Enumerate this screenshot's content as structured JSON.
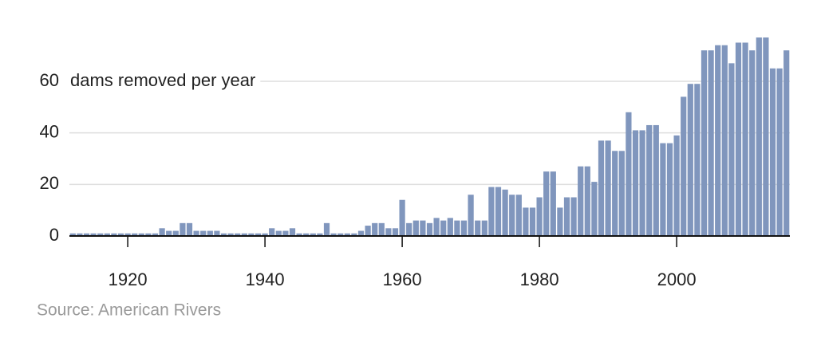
{
  "chart_data": {
    "type": "bar",
    "ylabel": "dams removed per year",
    "source": "Source: American Rivers",
    "x": [
      1912,
      1913,
      1914,
      1915,
      1916,
      1917,
      1918,
      1919,
      1920,
      1921,
      1922,
      1923,
      1924,
      1925,
      1926,
      1927,
      1928,
      1929,
      1930,
      1931,
      1932,
      1933,
      1934,
      1935,
      1936,
      1937,
      1938,
      1939,
      1940,
      1941,
      1942,
      1943,
      1944,
      1945,
      1946,
      1947,
      1948,
      1949,
      1950,
      1951,
      1952,
      1953,
      1954,
      1955,
      1956,
      1957,
      1958,
      1959,
      1960,
      1961,
      1962,
      1963,
      1964,
      1965,
      1966,
      1967,
      1968,
      1969,
      1970,
      1971,
      1972,
      1973,
      1974,
      1975,
      1976,
      1977,
      1978,
      1979,
      1980,
      1981,
      1982,
      1983,
      1984,
      1985,
      1986,
      1987,
      1988,
      1989,
      1990,
      1991,
      1992,
      1993,
      1994,
      1995,
      1996,
      1997,
      1998,
      1999,
      2000,
      2001,
      2002,
      2003,
      2004,
      2005,
      2006,
      2007,
      2008,
      2009,
      2010,
      2011,
      2012,
      2013,
      2014,
      2015,
      2016
    ],
    "values": [
      1,
      1,
      1,
      1,
      1,
      1,
      1,
      1,
      1,
      1,
      1,
      1,
      1,
      3,
      2,
      2,
      5,
      5,
      2,
      2,
      2,
      2,
      1,
      1,
      1,
      1,
      1,
      1,
      1,
      3,
      2,
      2,
      3,
      1,
      1,
      1,
      1,
      5,
      1,
      1,
      1,
      1,
      2,
      4,
      5,
      5,
      3,
      3,
      14,
      5,
      6,
      6,
      5,
      7,
      6,
      7,
      6,
      6,
      16,
      6,
      6,
      19,
      19,
      18,
      16,
      16,
      11,
      11,
      15,
      25,
      25,
      11,
      15,
      15,
      27,
      27,
      21,
      37,
      37,
      33,
      33,
      48,
      41,
      41,
      43,
      43,
      36,
      36,
      39,
      54,
      59,
      59,
      72,
      72,
      74,
      74,
      67,
      75,
      75,
      72,
      77,
      77,
      65,
      65,
      72
    ],
    "color": "#8096bd",
    "xlim": [
      1911.5,
      2016.5
    ],
    "xticks": [
      1920,
      1940,
      1960,
      1980,
      2000
    ],
    "ylim": [
      0,
      80
    ],
    "yticks": [
      0,
      20,
      40,
      60
    ],
    "grid": true
  }
}
